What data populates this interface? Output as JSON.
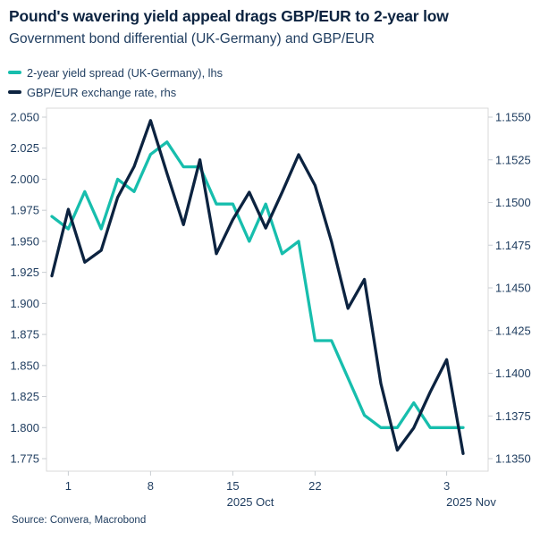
{
  "header": {
    "title": "Pound's wavering yield appeal drags GBP/EUR to 2-year low",
    "subtitle": "Government bond differential (UK-Germany) and GBP/EUR"
  },
  "legend": [
    {
      "label": "2-year yield spread (UK-Germany), lhs",
      "color": "#17BEAD"
    },
    {
      "label": "GBP/EUR exchange rate, rhs",
      "color": "#0C2340"
    }
  ],
  "source": "Source: Convera, Macrobond",
  "colors": {
    "teal": "#17BEAD",
    "navy": "#0C2340",
    "text": "#1E3C5F",
    "frame": "#D9D9D9"
  },
  "chart_data": {
    "type": "line",
    "x": [
      "Sep 30",
      "Oct 1",
      "Oct 2",
      "Oct 3",
      "Oct 6",
      "Oct 7",
      "Oct 8",
      "Oct 9",
      "Oct 10",
      "Oct 13",
      "Oct 14",
      "Oct 15",
      "Oct 16",
      "Oct 17",
      "Oct 20",
      "Oct 21",
      "Oct 22",
      "Oct 23",
      "Oct 24",
      "Oct 27",
      "Oct 28",
      "Oct 29",
      "Oct 30",
      "Oct 31",
      "Nov 3",
      "Nov 4"
    ],
    "series": [
      {
        "name": "2-year yield spread (UK-Germany), lhs",
        "axis": "left",
        "color": "#17BEAD",
        "values": [
          1.97,
          1.96,
          1.99,
          1.96,
          2.0,
          1.99,
          2.02,
          2.03,
          2.01,
          2.01,
          1.98,
          1.98,
          1.95,
          1.98,
          1.94,
          1.95,
          1.87,
          1.87,
          1.84,
          1.81,
          1.8,
          1.8,
          1.82,
          1.8,
          1.8,
          1.8
        ]
      },
      {
        "name": "GBP/EUR exchange rate, rhs",
        "axis": "right",
        "color": "#0C2340",
        "values": [
          1.1457,
          1.1496,
          1.1465,
          1.1472,
          1.1503,
          1.1521,
          1.1548,
          1.1517,
          1.1487,
          1.1525,
          1.147,
          1.149,
          1.1506,
          1.1485,
          1.1506,
          1.1528,
          1.151,
          1.1477,
          1.1438,
          1.1455,
          1.1394,
          1.1355,
          1.1368,
          1.1389,
          1.1408,
          1.1353
        ]
      }
    ],
    "axis_left": {
      "range": [
        1.775,
        2.05
      ],
      "tick_labels": [
        "2.050",
        "2.025",
        "2.000",
        "1.975",
        "1.950",
        "1.925",
        "1.900",
        "1.875",
        "1.850",
        "1.825",
        "1.800",
        "1.775"
      ]
    },
    "axis_right": {
      "range": [
        1.135,
        1.155
      ],
      "tick_labels": [
        "1.1550",
        "1.1525",
        "1.1500",
        "1.1475",
        "1.1450",
        "1.1425",
        "1.1400",
        "1.1375",
        "1.1350"
      ]
    },
    "axis_x": {
      "ticks": [
        {
          "label": "1",
          "index": 1
        },
        {
          "label": "8",
          "index": 6
        },
        {
          "label": "15",
          "index": 11
        },
        {
          "label": "22",
          "index": 16
        },
        {
          "label": "3",
          "index": 24
        }
      ],
      "period_labels": [
        "2025 Oct",
        "2025 Nov"
      ]
    },
    "grid": false,
    "legend_position": "top-left",
    "title": "Pound's wavering yield appeal drags GBP/EUR to 2-year low",
    "subtitle": "Government bond differential (UK-Germany) and GBP/EUR"
  }
}
